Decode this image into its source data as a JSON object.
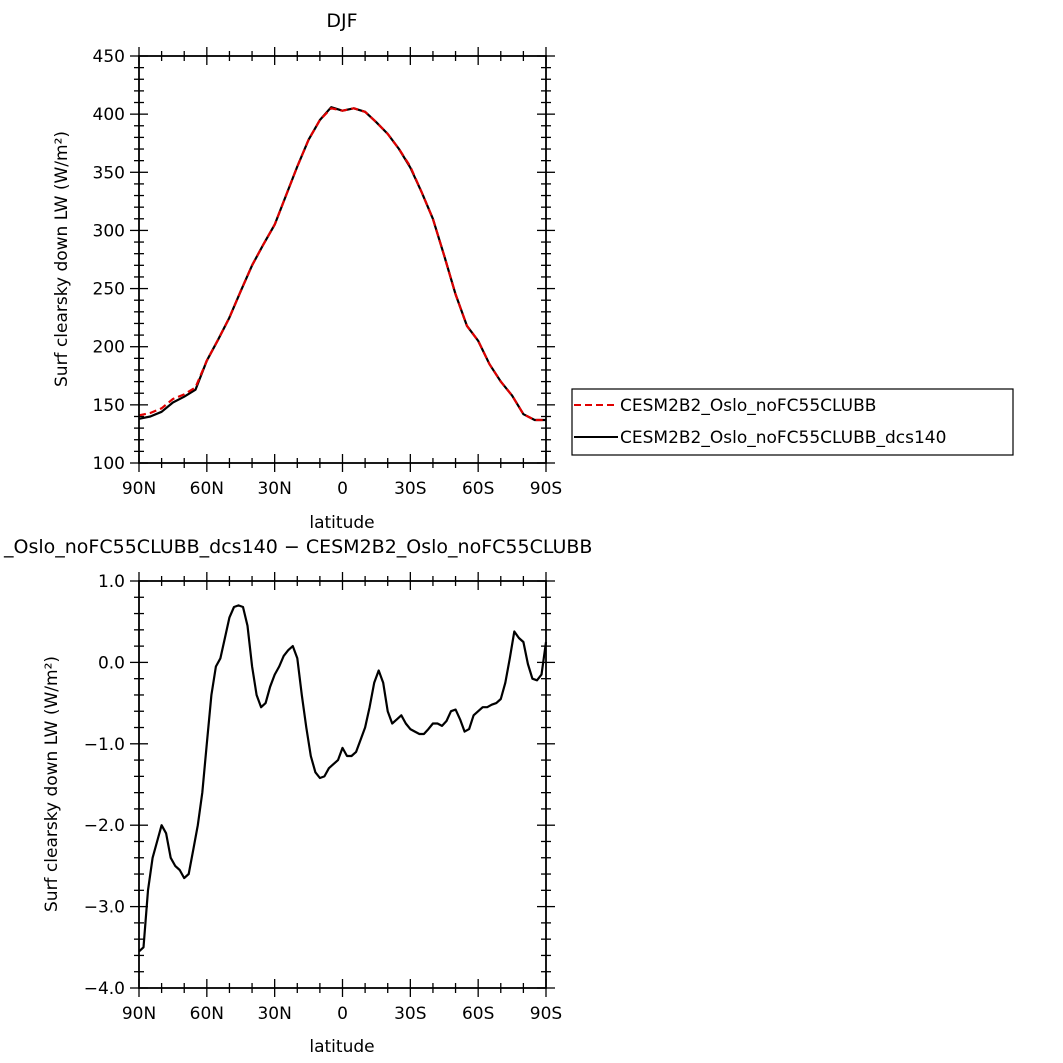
{
  "chart_data": [
    {
      "type": "line",
      "title": "DJF",
      "xlabel": "latitude",
      "ylabel": "Surf clearsky down LW (W/m²)",
      "xlim": [
        90,
        -90
      ],
      "ylim": [
        100,
        450
      ],
      "x_ticks": [
        90,
        60,
        30,
        0,
        -30,
        -60,
        -90
      ],
      "x_tick_labels": [
        "90N",
        "60N",
        "30N",
        "0",
        "30S",
        "60S",
        "90S"
      ],
      "y_ticks": [
        100,
        150,
        200,
        250,
        300,
        350,
        400,
        450
      ],
      "y_tick_labels": [
        "100",
        "150",
        "200",
        "250",
        "300",
        "350",
        "400",
        "450"
      ],
      "legend_position": "right",
      "series": [
        {
          "name": "CESM2B2_Oslo_noFC55CLUBB",
          "color": "#e00000",
          "dash": "dashed",
          "x": [
            90,
            85,
            80,
            75,
            70,
            65,
            60,
            55,
            50,
            45,
            40,
            35,
            30,
            25,
            20,
            15,
            10,
            5,
            0,
            -5,
            -10,
            -15,
            -20,
            -25,
            -30,
            -35,
            -40,
            -45,
            -50,
            -55,
            -60,
            -65,
            -70,
            -75,
            -80,
            -85,
            -90
          ],
          "values": [
            141,
            143,
            147,
            155,
            159,
            165,
            188,
            206,
            225,
            248,
            270,
            288,
            305,
            330,
            355,
            378,
            395,
            405,
            403,
            405,
            402,
            393,
            383,
            370,
            355,
            333,
            310,
            278,
            245,
            218,
            205,
            185,
            170,
            158,
            142,
            137,
            137
          ]
        },
        {
          "name": "CESM2B2_Oslo_noFC55CLUBB_dcs140",
          "color": "#000000",
          "dash": "solid",
          "x": [
            90,
            85,
            80,
            75,
            70,
            65,
            60,
            55,
            50,
            45,
            40,
            35,
            30,
            25,
            20,
            15,
            10,
            5,
            0,
            -5,
            -10,
            -15,
            -20,
            -25,
            -30,
            -35,
            -40,
            -45,
            -50,
            -55,
            -60,
            -65,
            -70,
            -75,
            -80,
            -85,
            -90
          ],
          "values": [
            138,
            140,
            144,
            152,
            157,
            163,
            188,
            206,
            225,
            248,
            270,
            288,
            305,
            330,
            355,
            378,
            395,
            406,
            403,
            405,
            402,
            393,
            383,
            370,
            354,
            333,
            310,
            278,
            245,
            218,
            205,
            185,
            170,
            158,
            142,
            137,
            137
          ]
        }
      ]
    },
    {
      "type": "line",
      "title": "_Oslo_noFC55CLUBB_dcs140 − CESM2B2_Oslo_noFC55CLUBB",
      "xlabel": "latitude",
      "ylabel": "Surf clearsky down LW (W/m²)",
      "xlim": [
        90,
        -90
      ],
      "ylim": [
        -4,
        1
      ],
      "x_ticks": [
        90,
        60,
        30,
        0,
        -30,
        -60,
        -90
      ],
      "x_tick_labels": [
        "90N",
        "60N",
        "30N",
        "0",
        "30S",
        "60S",
        "90S"
      ],
      "y_ticks": [
        -4,
        -3,
        -2,
        -1,
        0,
        1
      ],
      "y_tick_labels": [
        "−4.0",
        "−3.0",
        "−2.0",
        "−1.0",
        "0.0",
        "1.0"
      ],
      "series": [
        {
          "color": "#000000",
          "dash": "solid",
          "x": [
            90,
            88,
            86,
            84,
            82,
            80,
            78,
            76,
            74,
            72,
            70,
            68,
            66,
            64,
            62,
            60,
            58,
            56,
            54,
            52,
            50,
            48,
            46,
            44,
            42,
            40,
            38,
            36,
            34,
            32,
            30,
            28,
            26,
            24,
            22,
            20,
            18,
            16,
            14,
            12,
            10,
            8,
            6,
            4,
            2,
            0,
            -2,
            -4,
            -6,
            -8,
            -10,
            -12,
            -14,
            -16,
            -18,
            -20,
            -22,
            -24,
            -26,
            -28,
            -30,
            -32,
            -34,
            -36,
            -38,
            -40,
            -42,
            -44,
            -46,
            -48,
            -50,
            -52,
            -54,
            -56,
            -58,
            -60,
            -62,
            -64,
            -66,
            -68,
            -70,
            -72,
            -74,
            -76,
            -78,
            -80,
            -82,
            -84,
            -86,
            -88,
            -90
          ],
          "values": [
            -3.55,
            -3.5,
            -2.8,
            -2.4,
            -2.2,
            -2.0,
            -2.1,
            -2.4,
            -2.5,
            -2.55,
            -2.65,
            -2.6,
            -2.3,
            -2.0,
            -1.6,
            -1.0,
            -0.4,
            -0.05,
            0.05,
            0.3,
            0.55,
            0.68,
            0.7,
            0.68,
            0.45,
            -0.05,
            -0.4,
            -0.55,
            -0.5,
            -0.3,
            -0.15,
            -0.05,
            0.08,
            0.15,
            0.2,
            0.05,
            -0.4,
            -0.8,
            -1.15,
            -1.35,
            -1.42,
            -1.4,
            -1.3,
            -1.25,
            -1.2,
            -1.05,
            -1.15,
            -1.15,
            -1.1,
            -0.95,
            -0.8,
            -0.55,
            -0.25,
            -0.1,
            -0.25,
            -0.6,
            -0.75,
            -0.7,
            -0.65,
            -0.75,
            -0.82,
            -0.85,
            -0.88,
            -0.88,
            -0.82,
            -0.75,
            -0.75,
            -0.78,
            -0.72,
            -0.6,
            -0.58,
            -0.7,
            -0.85,
            -0.82,
            -0.65,
            -0.6,
            -0.55,
            -0.55,
            -0.52,
            -0.5,
            -0.45,
            -0.25,
            0.05,
            0.38,
            0.3,
            0.25,
            -0.02,
            -0.2,
            -0.22,
            -0.15,
            0.25
          ]
        }
      ]
    }
  ]
}
